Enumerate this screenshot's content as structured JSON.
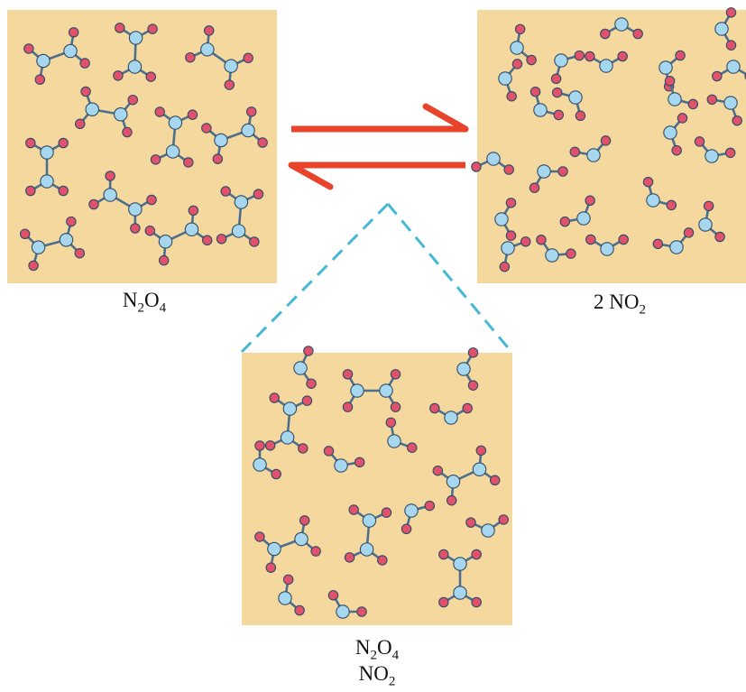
{
  "colors": {
    "box_fill": "#F5D89E",
    "nitrogen_atom": "#A6D7EE",
    "oxygen_atom": "#E0516C",
    "bond": "#4D6E8E",
    "equilibrium_arrows": "#E8432B",
    "zoom_lines": "#45B8D6"
  },
  "icons": {
    "forward_arrow": "half-arrow-right-icon",
    "reverse_arrow": "half-arrow-left-icon"
  },
  "labels": {
    "left": [
      {
        "t": "N"
      },
      {
        "t": "2",
        "sub": true
      },
      {
        "t": "O"
      },
      {
        "t": "4",
        "sub": true
      }
    ],
    "right": [
      {
        "t": "2 NO"
      },
      {
        "t": "2",
        "sub": true
      }
    ],
    "mixture_line1": [
      {
        "t": "N"
      },
      {
        "t": "2",
        "sub": true
      },
      {
        "t": "O"
      },
      {
        "t": "4",
        "sub": true
      }
    ],
    "mixture_line2": [
      {
        "t": "NO"
      },
      {
        "t": "2",
        "sub": true
      }
    ]
  }
}
